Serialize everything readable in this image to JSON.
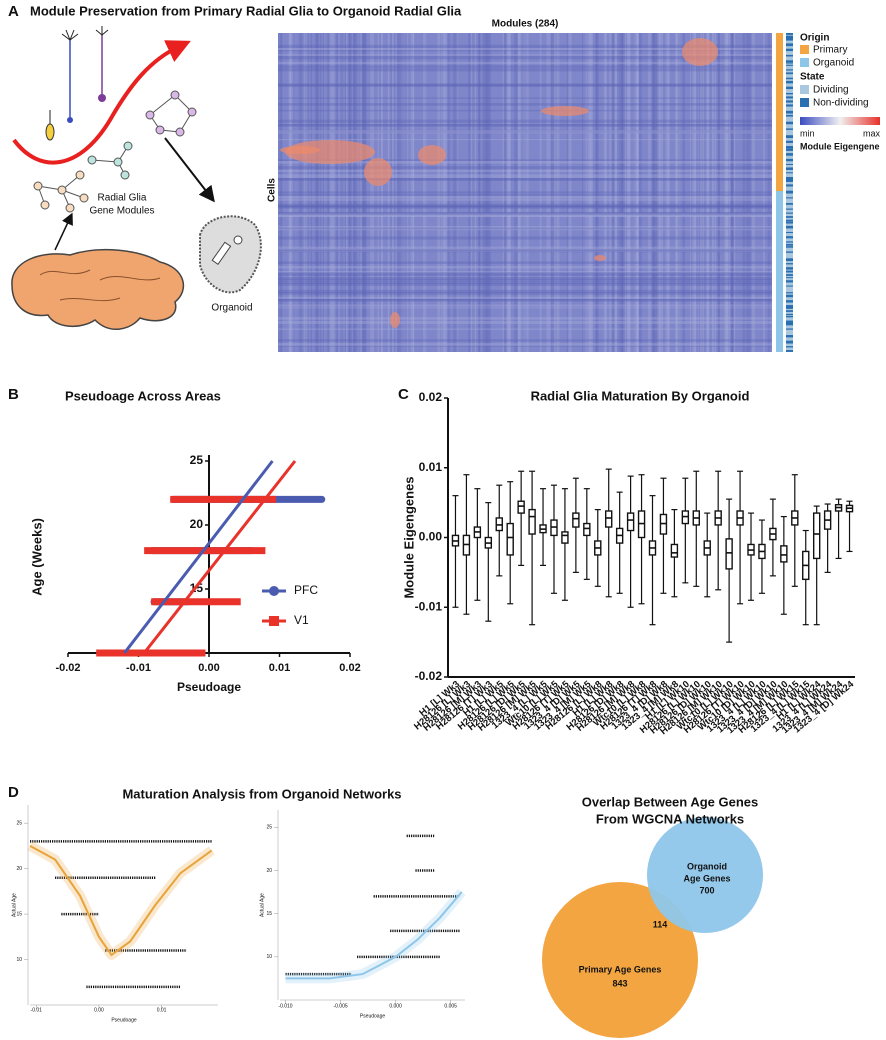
{
  "figure_title": "Module Preservation from Primary Radial Glia to Organoid Radial Glia",
  "panel_labels": [
    "A",
    "B",
    "C",
    "D"
  ],
  "panel_a": {
    "module_label": "Radial Glia",
    "module_label_2": "Gene Modules",
    "organoid_label": "Organoid",
    "heatmap_title": "Modules (284)",
    "heatmap_y_label": "Cells",
    "legend": {
      "origin_title": "Origin",
      "primary": "Primary",
      "organoid": "Organoid",
      "state_title": "State",
      "dividing": "Dividing",
      "non_dividing": "Non-dividing",
      "min": "min",
      "max": "max",
      "scale_title": "Module Eigengene"
    }
  },
  "chart_data": [
    {
      "type": "range",
      "title": "Pseudoage Across Areas",
      "x_label": "Pseudoage",
      "y_label": "Age (Weeks)",
      "xlim": [
        -0.02,
        0.02
      ],
      "xticks": [
        -0.02,
        -0.01,
        {
          "value": 0,
          "label": "0.00"
        },
        0.01,
        0.02
      ],
      "ylim": [
        10,
        25
      ],
      "yticks": [
        15,
        20,
        25
      ],
      "ages": [
        10,
        14,
        18,
        22
      ],
      "legend": "right",
      "series": [
        {
          "name": "PFC",
          "color": "#4a5bb0",
          "min": [
            -0.0155,
            -0.0078,
            -0.008,
            -0.005
          ],
          "max": [
            -0.0025,
            -0.003,
            0.006,
            0.016
          ],
          "fit": {
            "x": [
              -0.012,
              0.009
            ],
            "y": [
              10,
              25
            ]
          }
        },
        {
          "name": "V1",
          "color": "#e8322a",
          "min": [
            -0.016,
            -0.0082,
            -0.0092,
            -0.0055
          ],
          "max": [
            -0.0005,
            0.0045,
            0.008,
            0.0095
          ],
          "fit": {
            "x": [
              -0.0092,
              0.0122
            ],
            "y": [
              10,
              25
            ]
          }
        }
      ]
    },
    {
      "type": "box",
      "title": "Radial Glia Maturation By Organoid",
      "y_label": "Module Eigengenes",
      "ylim": [
        -0.02,
        0.02
      ],
      "yticks": [
        -0.02,
        -0.01,
        {
          "value": 0,
          "label": "0.00"
        },
        0.01,
        0.02
      ],
      "categories": [
        "H1 [L] Wk3",
        "H28126 [L] Wk3",
        "H28126 [M] Wk3",
        "H28126 [T] Wk3",
        "H1 [L] Wk5",
        "H28126 [L] Wk5",
        "H28126 [D] Wk5",
        "H28126 [M] Wk5",
        "1323_4 [L] Wk5",
        "Wtc10 [L] Wk5",
        "H28126 [T] Wk5",
        "1323_4 [D] Wk5",
        "1323_4 [M] Wk5",
        "H28126 [L] Wk8",
        "H1 [L] Wk8",
        "H28126 [D] Wk8",
        "H28126 [M] Wk8",
        "Wtc10 [L] Wk8",
        "H28126 [T] Wk8",
        "1323_4 [D] Wk8",
        "1323_4 [M] Wk8",
        "H1 [L] Wk10",
        "H28126 [L] Wk10",
        "H28126 [D] Wk10",
        "H28126 [M] Wk10",
        "Wtc10 [L] Wk10",
        "H28126 [T] Wk10",
        "Wtc10 [D] Wk10",
        "1323_4 [L] Wk10",
        "1323_4 [D] Wk10",
        "1323_4 [M] Wk10",
        "H28126 [L] Wk15",
        "1323_4 [L] Wk15",
        "H1 [L] Wk24",
        "1323_4 [L] Wk24",
        "1323_4 [M] Wk24",
        "1323_4 [D] Wk24"
      ],
      "min": [
        -0.01,
        -0.011,
        -0.009,
        -0.012,
        -0.0055,
        -0.0095,
        -0.004,
        -0.0125,
        -0.004,
        -0.008,
        -0.009,
        -0.005,
        -0.006,
        -0.007,
        -0.0085,
        -0.008,
        -0.01,
        -0.0095,
        -0.0125,
        -0.008,
        -0.0085,
        -0.0065,
        -0.007,
        -0.0085,
        -0.0075,
        -0.015,
        -0.0095,
        -0.009,
        -0.008,
        -0.0055,
        -0.011,
        -0.007,
        -0.0125,
        -0.0125,
        -0.005,
        -0.003,
        -0.002
      ],
      "q1": [
        -0.0012,
        -0.0025,
        0,
        -0.0015,
        0.001,
        -0.0025,
        0.0035,
        0.0005,
        0.0007,
        0.0003,
        -0.0008,
        0.0015,
        0.0003,
        -0.0025,
        0.0015,
        -0.0008,
        0.001,
        0,
        -0.0025,
        0.0005,
        -0.0028,
        0.002,
        0.0018,
        -0.0025,
        0.0018,
        -0.0045,
        0.0018,
        -0.0025,
        -0.003,
        -0.0003,
        -0.0035,
        0.0018,
        -0.006,
        -0.003,
        0.0012,
        0.0038,
        0.0037
      ],
      "median": [
        -0.0005,
        -0.001,
        0.0008,
        -0.0008,
        0.0018,
        0,
        0.0045,
        0.003,
        0.0012,
        0.0015,
        0.0003,
        0.0027,
        0.0013,
        -0.0015,
        0.0028,
        0.0003,
        0.0025,
        0.002,
        -0.0015,
        0.002,
        -0.0022,
        0.003,
        0.0028,
        -0.0015,
        0.0028,
        -0.0022,
        0.0028,
        -0.0018,
        -0.002,
        0.0005,
        -0.0025,
        0.0028,
        -0.004,
        0.0005,
        0.0025,
        0.0043,
        0.0042
      ],
      "q3": [
        0.0003,
        0.0003,
        0.0015,
        0,
        0.0028,
        0.002,
        0.0052,
        0.004,
        0.0018,
        0.0025,
        0.0008,
        0.0035,
        0.002,
        -0.0005,
        0.0038,
        0.0013,
        0.0035,
        0.0038,
        -0.0005,
        0.0033,
        -0.001,
        0.0038,
        0.0038,
        -0.0005,
        0.0038,
        -0.0002,
        0.0038,
        -0.001,
        -0.001,
        0.0013,
        -0.0012,
        0.0038,
        -0.002,
        0.0035,
        0.0038,
        0.0047,
        0.0046
      ],
      "max": [
        0.006,
        0.009,
        0.007,
        0.005,
        0.0075,
        0.008,
        0.0095,
        0.0095,
        0.007,
        0.0075,
        0.007,
        0.0085,
        0.007,
        0.004,
        0.0098,
        0.0065,
        0.0088,
        0.009,
        0.006,
        0.0085,
        0.004,
        0.0085,
        0.0095,
        0.0035,
        0.0095,
        0.0055,
        0.0095,
        0.0035,
        0.0025,
        0.0055,
        0.003,
        0.009,
        0.001,
        0.0045,
        0.0048,
        0.0055,
        0.0052
      ]
    },
    {
      "type": "range",
      "x_label": "Pseudoage",
      "y_label": "Actual Age",
      "xlim": [
        -0.011,
        0.019
      ],
      "xticks": [
        -0.01,
        {
          "value": 0,
          "label": "0.00"
        },
        0.01
      ],
      "ylim": [
        5,
        27
      ],
      "yticks": [
        10,
        15,
        20,
        25
      ],
      "ages": [
        7,
        11,
        15,
        19,
        23
      ],
      "series": [
        {
          "color": "#e8a33a",
          "min": [
            -0.002,
            0.001,
            -0.006,
            -0.007,
            -0.011
          ],
          "max": [
            0.013,
            0.014,
            0,
            0.009,
            0.018
          ],
          "fit": {
            "x": [
              -0.011,
              -0.007,
              -0.003,
              0,
              0.002,
              0.005,
              0.009,
              0.013,
              0.018
            ],
            "y": [
              22.5,
              21,
              17,
              12.5,
              10.5,
              12,
              16,
              19.5,
              22
            ]
          }
        }
      ]
    },
    {
      "type": "range",
      "x_label": "Pseudoage",
      "y_label": "Actual Age",
      "xlim": [
        -0.0105,
        0.0063
      ],
      "xticks": [
        {
          "value": -0.01,
          "label": "-0.010"
        },
        {
          "value": -0.005,
          "label": "-0.005"
        },
        {
          "value": 0,
          "label": "0.000"
        },
        {
          "value": 0.005,
          "label": "0.005"
        }
      ],
      "ylim": [
        5,
        27
      ],
      "yticks": [
        10,
        15,
        20,
        25
      ],
      "ages": [
        8,
        10,
        13,
        17,
        20,
        24
      ],
      "series": [
        {
          "color": "#8ec6ea",
          "min": [
            -0.01,
            -0.0035,
            -0.0005,
            -0.002,
            0.0018,
            0.001
          ],
          "max": [
            -0.004,
            0.004,
            0.0058,
            0.0058,
            0.0035,
            0.0035
          ],
          "fit": {
            "x": [
              -0.01,
              -0.006,
              -0.003,
              0,
              0.002,
              0.004,
              0.006
            ],
            "y": [
              7.5,
              7.5,
              8,
              10,
              12,
              14.5,
              17.5
            ]
          }
        }
      ]
    }
  ],
  "panel_d_title": "Maturation Analysis from Organoid Networks",
  "venn": {
    "title": "Overlap Between Age Genes",
    "title_2": "From WGCNA Networks",
    "organoid_label": "Organoid",
    "organoid_label_2": "Age Genes",
    "organoid_size": 700,
    "primary_label": "Primary Age Genes",
    "primary_size": 843,
    "overlap": 114
  }
}
